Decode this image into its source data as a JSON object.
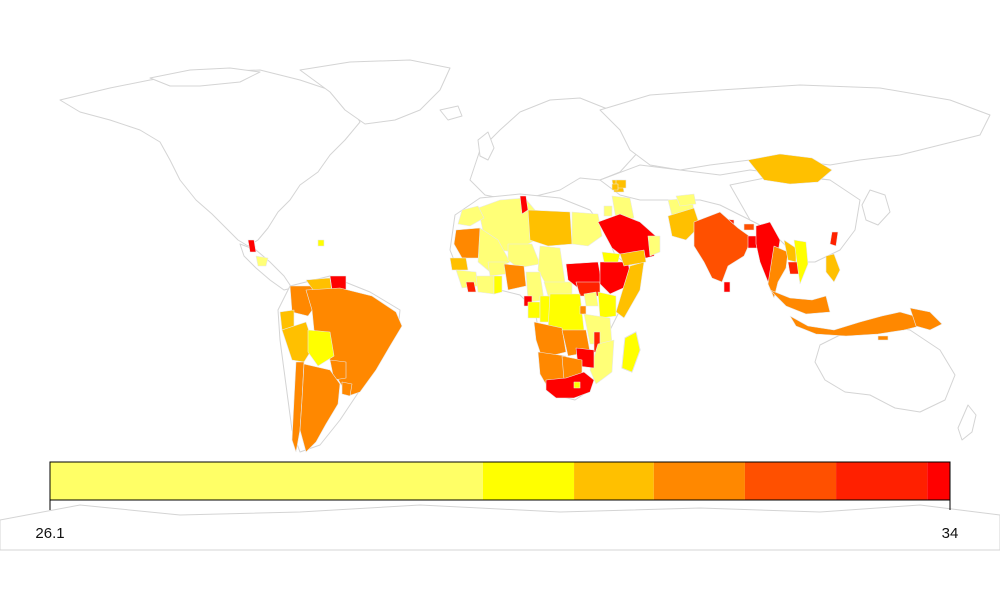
{
  "legend": {
    "min_label": "26.1",
    "max_label": "34",
    "min": 26.1,
    "max": 34,
    "bins": [
      {
        "from": 26.1,
        "to": 29.9,
        "color": "#ffff66"
      },
      {
        "from": 29.9,
        "to": 30.7,
        "color": "#ffff00"
      },
      {
        "from": 30.7,
        "to": 31.4,
        "color": "#ffc000"
      },
      {
        "from": 31.4,
        "to": 32.2,
        "color": "#ff8800"
      },
      {
        "from": 32.2,
        "to": 33.0,
        "color": "#ff5000"
      },
      {
        "from": 33.0,
        "to": 33.8,
        "color": "#ff2000"
      },
      {
        "from": 33.8,
        "to": 34.0,
        "color": "#ff0000"
      }
    ]
  },
  "colors": {
    "c1": "#ffff77",
    "c2": "#ffff00",
    "c3": "#ffc000",
    "c4": "#ff8800",
    "c5": "#ff5000",
    "c6": "#ff2200",
    "c7": "#ff0000"
  }
}
